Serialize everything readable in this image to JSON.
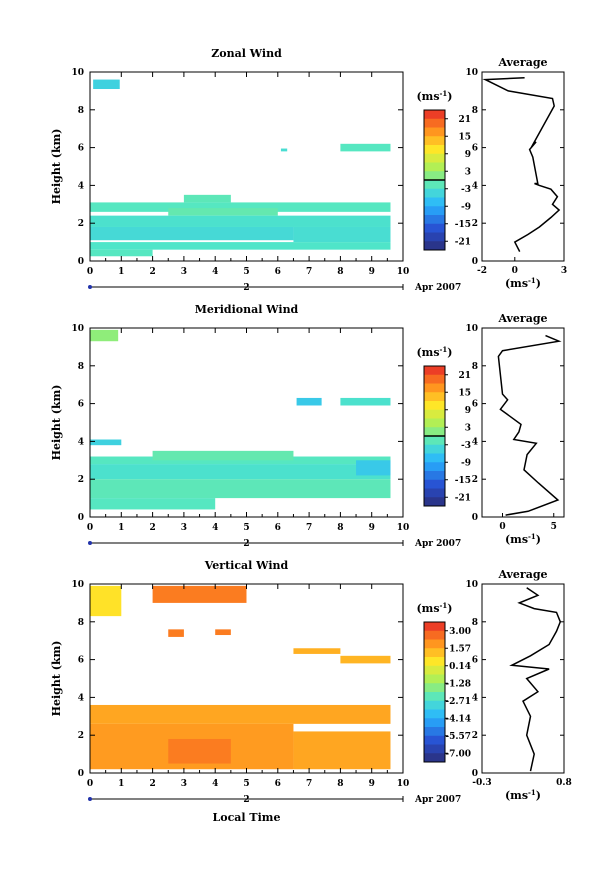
{
  "chart_data": [
    {
      "type": "heatmap",
      "title": "Zonal Wind",
      "ylabel": "Height (km)",
      "xlabel": "",
      "xlim": [
        0,
        10
      ],
      "ylim": [
        0,
        10
      ],
      "xticks": [
        "0",
        "1",
        "2",
        "3",
        "4",
        "5",
        "6",
        "7",
        "8",
        "9",
        "10"
      ],
      "yticks": [
        "0",
        "2",
        "4",
        "6",
        "8",
        "10"
      ],
      "date_marker": "2",
      "date_label": "Apr 2007",
      "colorbar": {
        "unit_base": "(ms",
        "unit_exp": "-1",
        "unit_close": ")",
        "labels": [
          "21",
          "15",
          "9",
          "3",
          "-3",
          "-9",
          "-15",
          "-21"
        ],
        "range": [
          -24,
          24
        ],
        "zero_line": 0
      },
      "cells": [
        {
          "t0": 0.1,
          "t1": 0.95,
          "h0": 9.1,
          "h1": 9.6,
          "v": -5
        },
        {
          "t0": 6.1,
          "t1": 6.3,
          "h0": 5.8,
          "h1": 5.95,
          "v": -3.5
        },
        {
          "t0": 8.0,
          "t1": 9.6,
          "h0": 5.8,
          "h1": 6.2,
          "v": -2
        },
        {
          "t0": 0.0,
          "t1": 9.6,
          "h0": 2.6,
          "h1": 3.1,
          "v": -2
        },
        {
          "t0": 2.5,
          "t1": 6.0,
          "h0": 2.4,
          "h1": 2.8,
          "v": -1
        },
        {
          "t0": 0.0,
          "t1": 9.6,
          "h0": 1.8,
          "h1": 2.4,
          "v": -3
        },
        {
          "t0": 0.0,
          "t1": 6.5,
          "h0": 1.1,
          "h1": 1.8,
          "v": -4
        },
        {
          "t0": 6.5,
          "t1": 9.6,
          "h0": 1.0,
          "h1": 1.8,
          "v": -3.5
        },
        {
          "t0": 0.0,
          "t1": 9.6,
          "h0": 0.6,
          "h1": 1.0,
          "v": -2.5
        },
        {
          "t0": 0.0,
          "t1": 2.0,
          "h0": 0.25,
          "h1": 0.6,
          "v": -2
        },
        {
          "t0": 3.0,
          "t1": 4.5,
          "h0": 3.1,
          "h1": 3.5,
          "v": -1.5
        }
      ],
      "average": {
        "title": "Average",
        "xlim": [
          -2,
          3
        ],
        "xticks": [
          "-2",
          "0",
          "3"
        ],
        "xlabel_base": "(ms",
        "xlabel_exp": "-1",
        "xlabel_close": ")",
        "profile": [
          [
            0.3,
            0.5
          ],
          [
            0.0,
            1.0
          ],
          [
            0.8,
            1.4
          ],
          [
            1.5,
            1.8
          ],
          [
            2.2,
            2.3
          ],
          [
            2.7,
            2.7
          ],
          [
            2.3,
            3.0
          ],
          [
            2.6,
            3.4
          ],
          [
            2.2,
            3.8
          ],
          [
            1.5,
            4.0
          ],
          [
            1.2,
            4.1
          ],
          [
            1.4,
            4.1
          ],
          [
            1.1,
            5.5
          ],
          [
            0.9,
            5.9
          ],
          [
            1.3,
            6.3
          ],
          [
            1.0,
            6.0
          ],
          [
            2.4,
            8.2
          ],
          [
            2.3,
            8.6
          ],
          [
            -0.4,
            9.0
          ],
          [
            -1.8,
            9.6
          ],
          [
            0.6,
            9.7
          ]
        ]
      }
    },
    {
      "type": "heatmap",
      "title": "Meridional Wind",
      "ylabel": "Height (km)",
      "xlabel": "",
      "xlim": [
        0,
        10
      ],
      "ylim": [
        0,
        10
      ],
      "xticks": [
        "0",
        "1",
        "2",
        "3",
        "4",
        "5",
        "6",
        "7",
        "8",
        "9",
        "10"
      ],
      "yticks": [
        "0",
        "2",
        "4",
        "6",
        "8",
        "10"
      ],
      "date_marker": "2",
      "date_label": "Apr 2007",
      "colorbar": {
        "unit_base": "(ms",
        "unit_exp": "-1",
        "unit_close": ")",
        "labels": [
          "21",
          "15",
          "9",
          "3",
          "-3",
          "-9",
          "-15",
          "-21"
        ],
        "range": [
          -24,
          24
        ],
        "zero_line": 0
      },
      "cells": [
        {
          "t0": 0.0,
          "t1": 0.9,
          "h0": 9.3,
          "h1": 9.9,
          "v": 2
        },
        {
          "t0": 6.6,
          "t1": 7.4,
          "h0": 5.9,
          "h1": 6.3,
          "v": -6
        },
        {
          "t0": 8.0,
          "t1": 9.6,
          "h0": 5.9,
          "h1": 6.3,
          "v": -3
        },
        {
          "t0": 0.0,
          "t1": 1.0,
          "h0": 3.8,
          "h1": 4.1,
          "v": -5
        },
        {
          "t0": 0.0,
          "t1": 9.6,
          "h0": 2.8,
          "h1": 3.2,
          "v": -2
        },
        {
          "t0": 2.0,
          "t1": 6.5,
          "h0": 3.0,
          "h1": 3.5,
          "v": -1
        },
        {
          "t0": 0.0,
          "t1": 9.6,
          "h0": 2.0,
          "h1": 2.8,
          "v": -3
        },
        {
          "t0": 8.5,
          "t1": 9.6,
          "h0": 2.2,
          "h1": 3.0,
          "v": -6
        },
        {
          "t0": 0.0,
          "t1": 9.6,
          "h0": 1.0,
          "h1": 2.0,
          "v": -1.5
        },
        {
          "t0": 0.0,
          "t1": 4.0,
          "h0": 0.4,
          "h1": 1.0,
          "v": -2
        }
      ],
      "average": {
        "title": "Average",
        "xlim": [
          -2,
          6
        ],
        "xticks": [
          "0",
          "5"
        ],
        "xlabel_base": "(ms",
        "xlabel_exp": "-1",
        "xlabel_close": ")",
        "profile": [
          [
            0.3,
            0.1
          ],
          [
            2.5,
            0.3
          ],
          [
            5.4,
            0.9
          ],
          [
            3.5,
            1.8
          ],
          [
            2.1,
            2.5
          ],
          [
            2.4,
            3.3
          ],
          [
            3.3,
            3.9
          ],
          [
            1.1,
            4.1
          ],
          [
            1.6,
            4.5
          ],
          [
            1.8,
            4.9
          ],
          [
            -0.2,
            5.7
          ],
          [
            0.5,
            6.2
          ],
          [
            0.0,
            6.5
          ],
          [
            -0.4,
            8.5
          ],
          [
            0.0,
            8.8
          ],
          [
            5.5,
            9.3
          ],
          [
            4.2,
            9.6
          ]
        ]
      }
    },
    {
      "type": "heatmap",
      "title": "Vertical Wind",
      "ylabel": "Height (km)",
      "xlabel": "Local Time",
      "xlim": [
        0,
        10
      ],
      "ylim": [
        0,
        10
      ],
      "xticks": [
        "0",
        "1",
        "2",
        "3",
        "4",
        "5",
        "6",
        "7",
        "8",
        "9",
        "10"
      ],
      "yticks": [
        "0",
        "2",
        "4",
        "6",
        "8",
        "10"
      ],
      "date_marker": "2",
      "date_label": "Apr 2007",
      "colorbar": {
        "unit_base": "(ms",
        "unit_exp": "-1",
        "unit_close": ")",
        "labels": [
          "3.00",
          "1.57",
          "0.14",
          "-1.28",
          "-2.71",
          "-4.14",
          "-5.57",
          "-7.00"
        ],
        "range": [
          -8.4,
          4.4
        ],
        "zero_line": null
      },
      "cells": [
        {
          "t0": 0.0,
          "t1": 1.0,
          "h0": 8.3,
          "h1": 9.9,
          "v": 0.9
        },
        {
          "t0": 2.0,
          "t1": 5.0,
          "h0": 9.0,
          "h1": 9.9,
          "v": 2.9
        },
        {
          "t0": 2.5,
          "t1": 3.0,
          "h0": 7.2,
          "h1": 7.6,
          "v": 2.9
        },
        {
          "t0": 4.0,
          "t1": 4.5,
          "h0": 7.3,
          "h1": 7.6,
          "v": 2.9
        },
        {
          "t0": 6.5,
          "t1": 8.0,
          "h0": 6.3,
          "h1": 6.6,
          "v": 1.9
        },
        {
          "t0": 8.0,
          "t1": 9.6,
          "h0": 5.8,
          "h1": 6.2,
          "v": 1.8
        },
        {
          "t0": 0.0,
          "t1": 9.6,
          "h0": 2.6,
          "h1": 3.6,
          "v": 2.1
        },
        {
          "t0": 0.0,
          "t1": 6.5,
          "h0": 0.2,
          "h1": 2.6,
          "v": 2.3
        },
        {
          "t0": 6.5,
          "t1": 9.6,
          "h0": 0.2,
          "h1": 2.2,
          "v": 2.1
        },
        {
          "t0": 2.5,
          "t1": 4.5,
          "h0": 0.5,
          "h1": 1.8,
          "v": 2.9
        }
      ],
      "average": {
        "title": "Average",
        "xlim": [
          -0.3,
          0.8
        ],
        "xticks": [
          "-0.3",
          "0.8"
        ],
        "xlabel_base": "(ms",
        "xlabel_exp": "-1",
        "xlabel_close": ")",
        "profile": [
          [
            0.35,
            0.1
          ],
          [
            0.4,
            1.0
          ],
          [
            0.3,
            2.0
          ],
          [
            0.35,
            3.0
          ],
          [
            0.25,
            3.8
          ],
          [
            0.45,
            4.3
          ],
          [
            0.3,
            5.0
          ],
          [
            0.6,
            5.5
          ],
          [
            0.1,
            5.7
          ],
          [
            0.35,
            6.2
          ],
          [
            0.6,
            6.8
          ],
          [
            0.7,
            7.5
          ],
          [
            0.75,
            8.0
          ],
          [
            0.7,
            8.5
          ],
          [
            0.4,
            8.7
          ],
          [
            0.2,
            9.0
          ],
          [
            0.45,
            9.4
          ],
          [
            0.3,
            9.8
          ]
        ]
      }
    }
  ]
}
